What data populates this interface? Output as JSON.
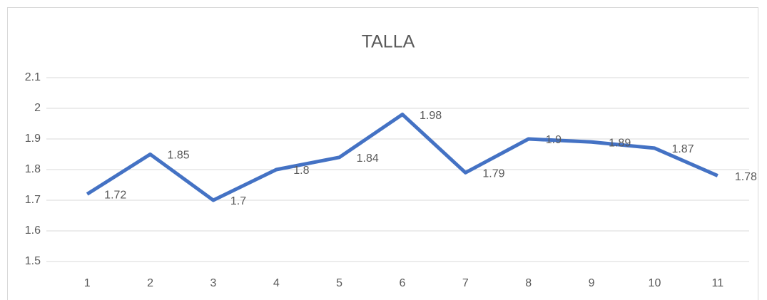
{
  "chart_data": {
    "type": "line",
    "title": "TALLA",
    "categories": [
      "1",
      "2",
      "3",
      "4",
      "5",
      "6",
      "7",
      "8",
      "9",
      "10",
      "11"
    ],
    "values": [
      1.72,
      1.85,
      1.7,
      1.8,
      1.84,
      1.98,
      1.79,
      1.9,
      1.89,
      1.87,
      1.78
    ],
    "color": "#4472c4",
    "ylim": [
      1.5,
      2.1
    ],
    "yticks": [
      1.5,
      1.6,
      1.7,
      1.8,
      1.9,
      2,
      2.1
    ],
    "grid": true
  }
}
